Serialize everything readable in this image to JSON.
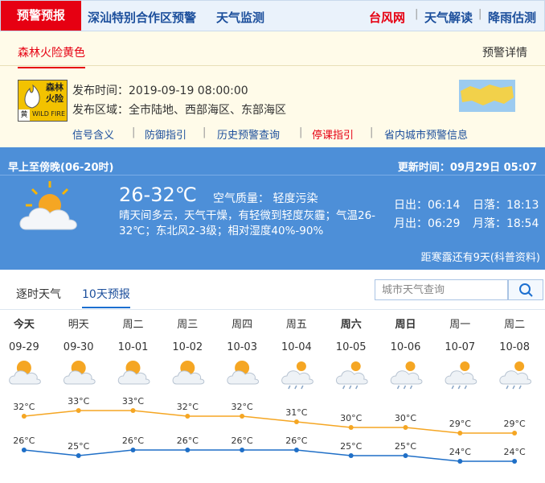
{
  "nav": {
    "active": "预警预报",
    "links": [
      "深汕特别合作区预警",
      "天气监测"
    ],
    "right_links": [
      "台风网",
      "天气解读",
      "降雨估测"
    ]
  },
  "warning": {
    "tab": "森林火险黄色",
    "details": "预警详情",
    "icon": {
      "text1": "森林",
      "text2": "火险",
      "level": "黄",
      "en": "WILD FIRE"
    },
    "publish_time": "发布时间：2019-09-19 08:00:00",
    "area": "发布区域：全市陆地、西部海区、东部海区",
    "links": [
      "信号含义",
      "防御指引",
      "历史预警查询",
      "停课指引",
      "省内城市预警信息"
    ]
  },
  "today": {
    "period": "早上至傍晚(06-20时)",
    "updated": "更新时间：09月29日 05:07",
    "temp": "26-32℃",
    "air": "空气质量： 轻度污染",
    "description": "晴天间多云，天气干燥，有轻微到轻度灰霾；气温26-32℃；东北风2-3级；相对湿度40%-90%",
    "sunrise": "日出：06:14",
    "sunset": "日落：18:13",
    "moonrise": "月出：06:29",
    "moonset": "月落：18:54",
    "solar_term": "距寒露还有9天(科普资料)"
  },
  "tabs": [
    "逐时天气",
    "10天预报"
  ],
  "search_placeholder": "城市天气查询",
  "chart_data": {
    "type": "line",
    "categories": [
      "今天",
      "明天",
      "周二",
      "周三",
      "周四",
      "周五",
      "周六",
      "周日",
      "周一",
      "周二"
    ],
    "dates": [
      "09-29",
      "09-30",
      "10-01",
      "10-02",
      "10-03",
      "10-04",
      "10-05",
      "10-06",
      "10-07",
      "10-08"
    ],
    "series": [
      {
        "color": "#f5a623",
        "values": [
          32,
          33,
          33,
          32,
          32,
          31,
          30,
          30,
          29,
          29
        ],
        "value_labels": [
          "32°C",
          "33°C",
          "33°C",
          "32°C",
          "32°C",
          "31°C",
          "30°C",
          "30°C",
          "29°C",
          "29°C"
        ]
      },
      {
        "color": "#1f6fc7",
        "values": [
          26,
          25,
          26,
          26,
          26,
          26,
          25,
          25,
          24,
          24
        ],
        "value_labels": [
          "26°C",
          "25°C",
          "26°C",
          "26°C",
          "26°C",
          "26°C",
          "25°C",
          "25°C",
          "24°C",
          "24°C"
        ]
      }
    ]
  }
}
